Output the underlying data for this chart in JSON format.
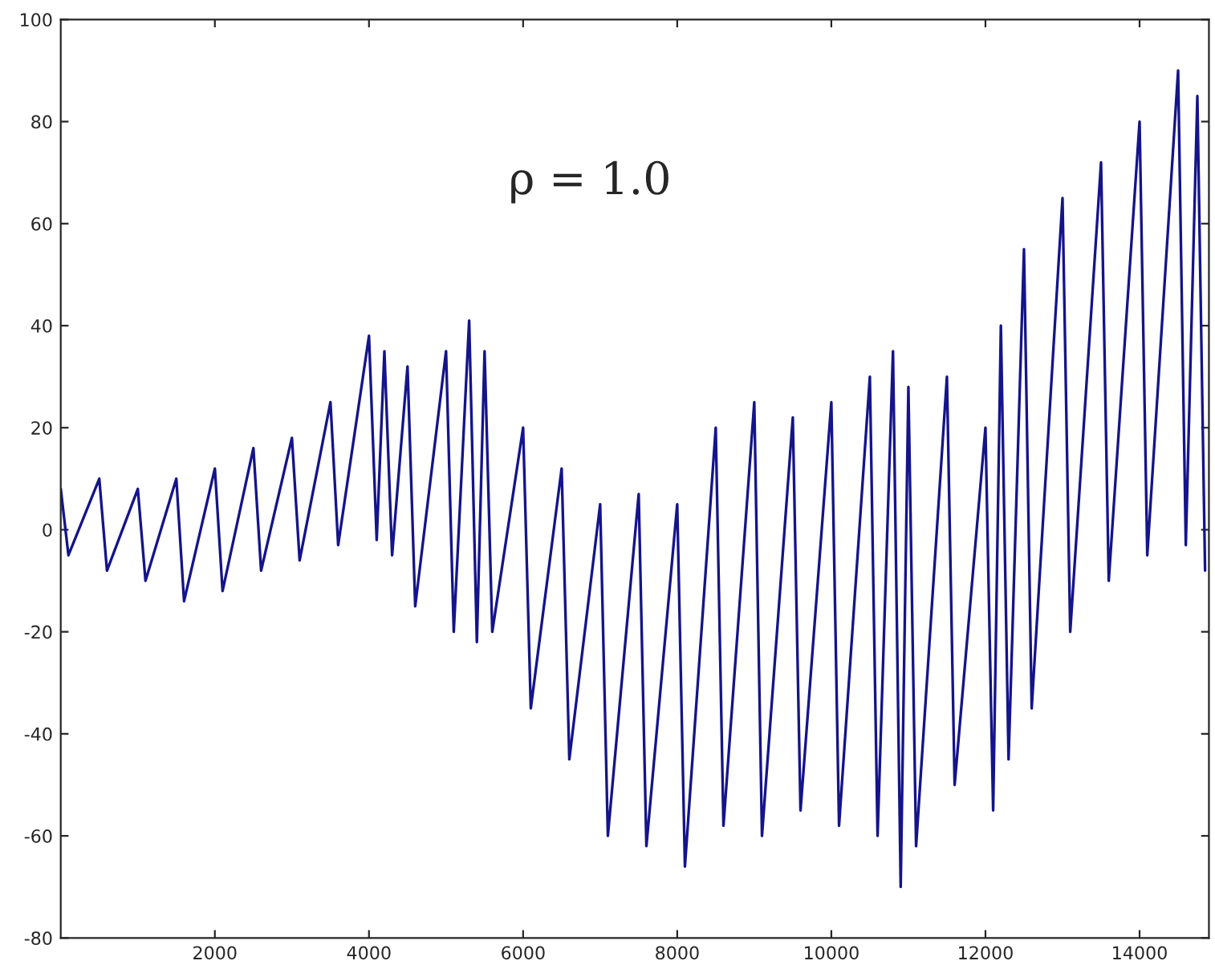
{
  "chart_data": {
    "type": "line",
    "annotations": [
      "ρ = 1.0"
    ],
    "xlim": [
      0,
      14900
    ],
    "xticks": [
      2000,
      4000,
      6000,
      8000,
      10000,
      12000,
      14000
    ],
    "ylim": [
      -80,
      100
    ],
    "yticks": [
      -80,
      -60,
      -40,
      -20,
      0,
      20,
      40,
      60,
      80,
      100
    ],
    "grid": false,
    "legend": false,
    "series": [
      {
        "color": "#14148c",
        "x": [
          0,
          100,
          500,
          600,
          1000,
          1100,
          1500,
          1600,
          2000,
          2100,
          2500,
          2600,
          3000,
          3100,
          3500,
          3600,
          4000,
          4100,
          4200,
          4300,
          4500,
          4600,
          5000,
          5100,
          5300,
          5400,
          5500,
          5600,
          6000,
          6100,
          6500,
          6600,
          7000,
          7100,
          7500,
          7600,
          8000,
          8100,
          8500,
          8600,
          9000,
          9100,
          9500,
          9600,
          10000,
          10100,
          10500,
          10600,
          10800,
          10900,
          11000,
          11100,
          11500,
          11600,
          12000,
          12100,
          12200,
          12300,
          12500,
          12600,
          13000,
          13100,
          13500,
          13600,
          14000,
          14100,
          14500,
          14600,
          14750,
          14850
        ],
        "values": [
          8,
          -5,
          10,
          -8,
          8,
          -10,
          10,
          -14,
          12,
          -12,
          16,
          -8,
          18,
          -6,
          25,
          -3,
          38,
          -2,
          35,
          -5,
          32,
          -15,
          35,
          -20,
          41,
          -22,
          35,
          -20,
          20,
          -35,
          12,
          -45,
          5,
          -60,
          7,
          -62,
          5,
          -66,
          20,
          -58,
          25,
          -60,
          22,
          -55,
          25,
          -58,
          30,
          -60,
          35,
          -70,
          28,
          -62,
          30,
          -50,
          20,
          -55,
          40,
          -45,
          55,
          -35,
          65,
          -20,
          72,
          -10,
          80,
          -5,
          90,
          -3,
          85,
          -8
        ]
      }
    ]
  }
}
